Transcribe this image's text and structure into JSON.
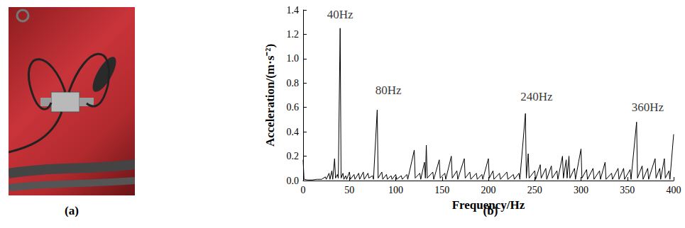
{
  "panel_labels": [
    "(a)",
    "(b)"
  ],
  "chart_data": {
    "type": "line",
    "x_label": "Frequency/Hz",
    "y_label": "Acceleration/(m·s⁻²)",
    "xlim": [
      0,
      400
    ],
    "xticks": [
      0,
      50,
      100,
      150,
      200,
      250,
      300,
      350,
      400
    ],
    "ylim": [
      0,
      1.4
    ],
    "yticks": [
      {
        "value": 0,
        "label": "0.0"
      },
      0.2,
      0.4,
      0.6,
      0.8,
      {
        "value": 1,
        "label": "1.0"
      },
      1.2,
      1.4
    ],
    "grid": false,
    "color": "#000000",
    "x": [
      0,
      1,
      5,
      10,
      15,
      20,
      24,
      25,
      28,
      29,
      31,
      32,
      34,
      35,
      37,
      38,
      40,
      41,
      43,
      44,
      46,
      47,
      50,
      51,
      55,
      56,
      60,
      61,
      65,
      66,
      70,
      71,
      75,
      76,
      80,
      81,
      85,
      86,
      90,
      91,
      95,
      96,
      100,
      101,
      106,
      107,
      112,
      113,
      120,
      121,
      126,
      127,
      131,
      132,
      133,
      134,
      140,
      141,
      147,
      148,
      153,
      154,
      160,
      161,
      166,
      167,
      174,
      175,
      180,
      181,
      187,
      188,
      193,
      194,
      200,
      201,
      205,
      206,
      212,
      213,
      220,
      221,
      227,
      228,
      233,
      234,
      240,
      241,
      243,
      244,
      250,
      251,
      256,
      257,
      262,
      263,
      268,
      269,
      274,
      275,
      280,
      281,
      284,
      285,
      287,
      288,
      293,
      294,
      300,
      301,
      306,
      307,
      313,
      314,
      320,
      321,
      326,
      327,
      333,
      334,
      340,
      341,
      346,
      347,
      353,
      354,
      360,
      361,
      366,
      367,
      372,
      373,
      380,
      381,
      385,
      386,
      390,
      391,
      395,
      396,
      400
    ],
    "values": [
      0.17,
      0.01,
      0.005,
      0.005,
      0.01,
      0.01,
      0.03,
      0.01,
      0.06,
      0.01,
      0.08,
      0.01,
      0.18,
      0.02,
      0.05,
      0.02,
      1.25,
      0.02,
      0.06,
      0.01,
      0.04,
      0.01,
      0.07,
      0.01,
      0.05,
      0.01,
      0.06,
      0.01,
      0.07,
      0.01,
      0.06,
      0.02,
      0.04,
      0.01,
      0.58,
      0.02,
      0.07,
      0.01,
      0.05,
      0.01,
      0.04,
      0.01,
      0.05,
      0.01,
      0.04,
      0.01,
      0.05,
      0.01,
      0.25,
      0.02,
      0.06,
      0.01,
      0.15,
      0.02,
      0.29,
      0.02,
      0.07,
      0.01,
      0.17,
      0.02,
      0.06,
      0.01,
      0.2,
      0.02,
      0.08,
      0.01,
      0.18,
      0.02,
      0.07,
      0.01,
      0.06,
      0.01,
      0.05,
      0.01,
      0.18,
      0.02,
      0.08,
      0.01,
      0.06,
      0.01,
      0.07,
      0.01,
      0.05,
      0.01,
      0.06,
      0.01,
      0.55,
      0.02,
      0.22,
      0.02,
      0.08,
      0.01,
      0.13,
      0.02,
      0.1,
      0.01,
      0.12,
      0.02,
      0.08,
      0.01,
      0.2,
      0.02,
      0.17,
      0.02,
      0.2,
      0.02,
      0.1,
      0.01,
      0.26,
      0.02,
      0.09,
      0.01,
      0.1,
      0.01,
      0.08,
      0.01,
      0.15,
      0.01,
      0.06,
      0.01,
      0.1,
      0.01,
      0.1,
      0.01,
      0.09,
      0.01,
      0.48,
      0.02,
      0.12,
      0.01,
      0.1,
      0.01,
      0.18,
      0.02,
      0.1,
      0.01,
      0.18,
      0.02,
      0.08,
      0.01,
      0.38
    ],
    "annotations": [
      {
        "text": "40Hz",
        "x": 40,
        "y": 1.36
      },
      {
        "text": "80Hz",
        "x": 92,
        "y": 0.74
      },
      {
        "text": "240Hz",
        "x": 252,
        "y": 0.69
      },
      {
        "text": "360Hz",
        "x": 372,
        "y": 0.6
      }
    ]
  }
}
